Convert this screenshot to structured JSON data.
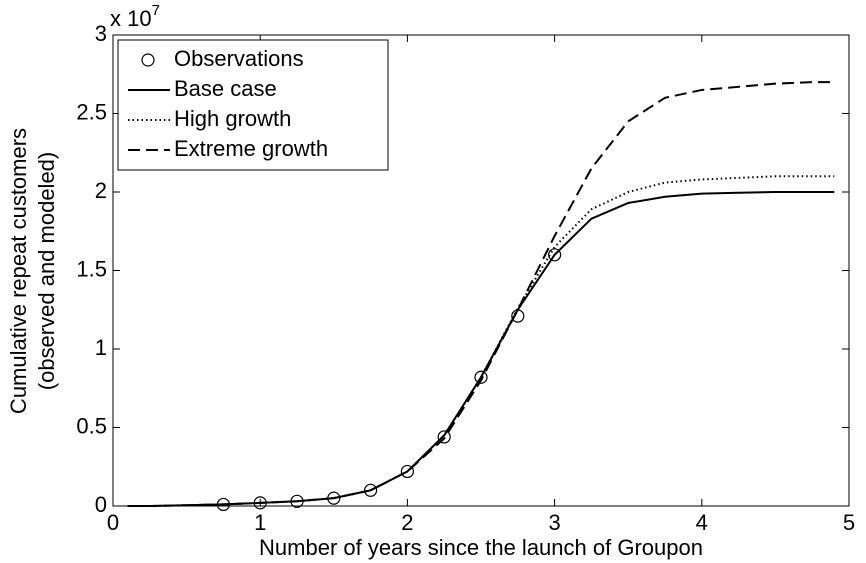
{
  "chart_data": {
    "type": "line",
    "xlabel": "Number of years since the launch of Groupon",
    "ylabel": [
      "Cumulative repeat customers",
      "(observed and modeled)"
    ],
    "y_multiplier": {
      "base": "x 10",
      "exponent": "7"
    },
    "xlim": [
      0,
      5
    ],
    "xticks": [
      0,
      1,
      2,
      3,
      4,
      5
    ],
    "ylim": [
      0,
      3
    ],
    "yticks": [
      0,
      0.5,
      1,
      1.5,
      2,
      2.5,
      3
    ],
    "legend": "upper left",
    "series": [
      {
        "name": "Observations",
        "color": "#000000",
        "style": "circle",
        "x": [
          0.75,
          1,
          1.25,
          1.5,
          1.75,
          2,
          2.25,
          2.5,
          2.75,
          3
        ],
        "values": [
          0.01,
          0.02,
          0.03,
          0.05,
          0.1,
          0.22,
          0.44,
          0.82,
          1.21,
          1.6
        ]
      },
      {
        "name": "Base case",
        "color": "#000000",
        "style": "solid",
        "x": [
          0.1,
          0.25,
          0.5,
          0.75,
          1,
          1.25,
          1.5,
          1.75,
          2,
          2.25,
          2.5,
          2.75,
          3,
          3.25,
          3.5,
          3.75,
          4,
          4.25,
          4.5,
          4.75,
          4.9
        ],
        "values": [
          0,
          0,
          0.005,
          0.01,
          0.02,
          0.03,
          0.05,
          0.1,
          0.22,
          0.45,
          0.82,
          1.25,
          1.6,
          1.83,
          1.93,
          1.97,
          1.99,
          1.995,
          2,
          2,
          2
        ]
      },
      {
        "name": "High growth",
        "color": "#000000",
        "style": "dotted",
        "x": [
          0.1,
          0.25,
          0.5,
          0.75,
          1,
          1.25,
          1.5,
          1.75,
          2,
          2.25,
          2.5,
          2.75,
          3,
          3.25,
          3.5,
          3.75,
          4,
          4.25,
          4.5,
          4.75,
          4.9
        ],
        "values": [
          0,
          0,
          0.005,
          0.01,
          0.02,
          0.03,
          0.05,
          0.1,
          0.22,
          0.45,
          0.82,
          1.26,
          1.65,
          1.89,
          2,
          2.06,
          2.08,
          2.09,
          2.1,
          2.1,
          2.1
        ]
      },
      {
        "name": "Extreme growth",
        "color": "#000000",
        "style": "dashed",
        "x": [
          0.1,
          0.25,
          0.5,
          0.75,
          1,
          1.25,
          1.5,
          1.75,
          2,
          2.25,
          2.5,
          2.75,
          3,
          3.25,
          3.5,
          3.75,
          4,
          4.25,
          4.5,
          4.75,
          4.9
        ],
        "values": [
          0,
          0,
          0.005,
          0.01,
          0.02,
          0.03,
          0.05,
          0.1,
          0.22,
          0.43,
          0.8,
          1.25,
          1.72,
          2.15,
          2.45,
          2.6,
          2.65,
          2.67,
          2.69,
          2.7,
          2.7
        ]
      }
    ]
  }
}
